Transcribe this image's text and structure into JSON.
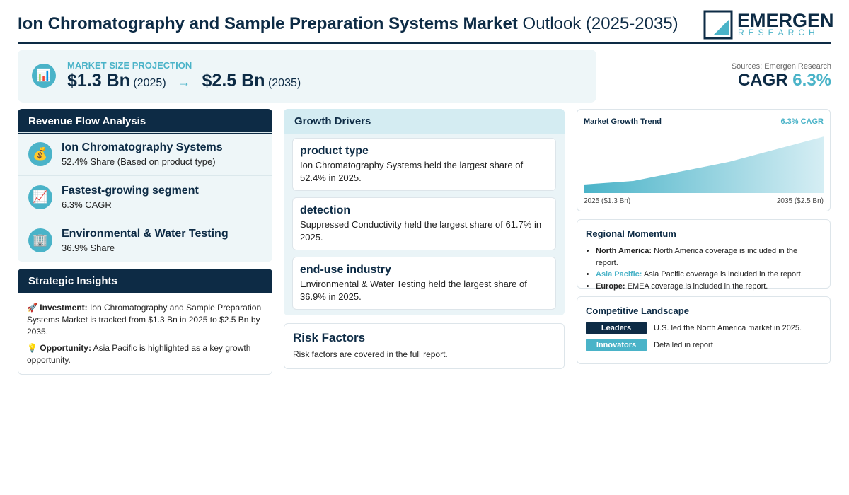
{
  "header": {
    "title_bold": "Ion Chromatography and Sample Preparation Systems Market",
    "title_rest": "Outlook (2025-2035)",
    "logo": {
      "name": "EMERGEN",
      "sub": "RESEARCH"
    }
  },
  "market_size": {
    "icon": "📊",
    "label": "MARKET SIZE PROJECTION",
    "start_value": "$1.3 Bn",
    "start_year": "(2025)",
    "arrow": "→",
    "end_value": "$2.5 Bn",
    "end_year": "(2035)"
  },
  "cagr": {
    "source": "Sources: Emergen Research",
    "label": "CAGR",
    "value": "6.3%"
  },
  "revenue_flow": {
    "title": "Revenue Flow Analysis",
    "items": [
      {
        "icon": "💰",
        "title": "Ion Chromatography Systems",
        "text": "52.4% Share (Based on product type)"
      },
      {
        "icon": "📈",
        "title": "Fastest-growing segment",
        "text": "6.3% CAGR"
      },
      {
        "icon": "🏢",
        "title": "Environmental & Water Testing",
        "text": "36.9% Share"
      }
    ]
  },
  "strategic_insights": {
    "title": "Strategic Insights",
    "items": [
      {
        "icon": "🚀",
        "label": "Investment:",
        "text": "Ion Chromatography and Sample Preparation Systems Market is tracked from $1.3 Bn in 2025 to $2.5 Bn by 2035."
      },
      {
        "icon": "💡",
        "label": "Opportunity:",
        "text": "Asia Pacific is highlighted as a key growth opportunity."
      }
    ]
  },
  "growth_drivers": {
    "title": "Growth Drivers",
    "items": [
      {
        "title": "product type",
        "text": "Ion Chromatography Systems held the largest share of 52.4% in 2025."
      },
      {
        "title": "detection",
        "text": "Suppressed Conductivity held the largest share of 61.7% in 2025."
      },
      {
        "title": "end-use industry",
        "text": "Environmental & Water Testing held the largest share of 36.9% in 2025."
      }
    ]
  },
  "risk_factors": {
    "title": "Risk Factors",
    "text": "Risk factors are covered in the full report."
  },
  "growth_trend": {
    "title": "Market Growth Trend",
    "badge": "6.3% CAGR",
    "start_label": "2025 ($1.3 Bn)",
    "end_label": "2035 ($2.5 Bn)"
  },
  "regional_momentum": {
    "title": "Regional Momentum",
    "items": [
      {
        "region": "North America:",
        "text": "North America coverage is included in the report."
      },
      {
        "region": "Asia Pacific:",
        "text": "Asia Pacific coverage is included in the report."
      },
      {
        "region": "Europe:",
        "text": "EMEA coverage is included in the report."
      }
    ]
  },
  "competitive_landscape": {
    "title": "Competitive Landscape",
    "items": [
      {
        "tag": "Leaders",
        "text": "U.S. led the North America market in 2025."
      },
      {
        "tag": "Innovators",
        "text": "Detailed in report"
      }
    ]
  }
}
